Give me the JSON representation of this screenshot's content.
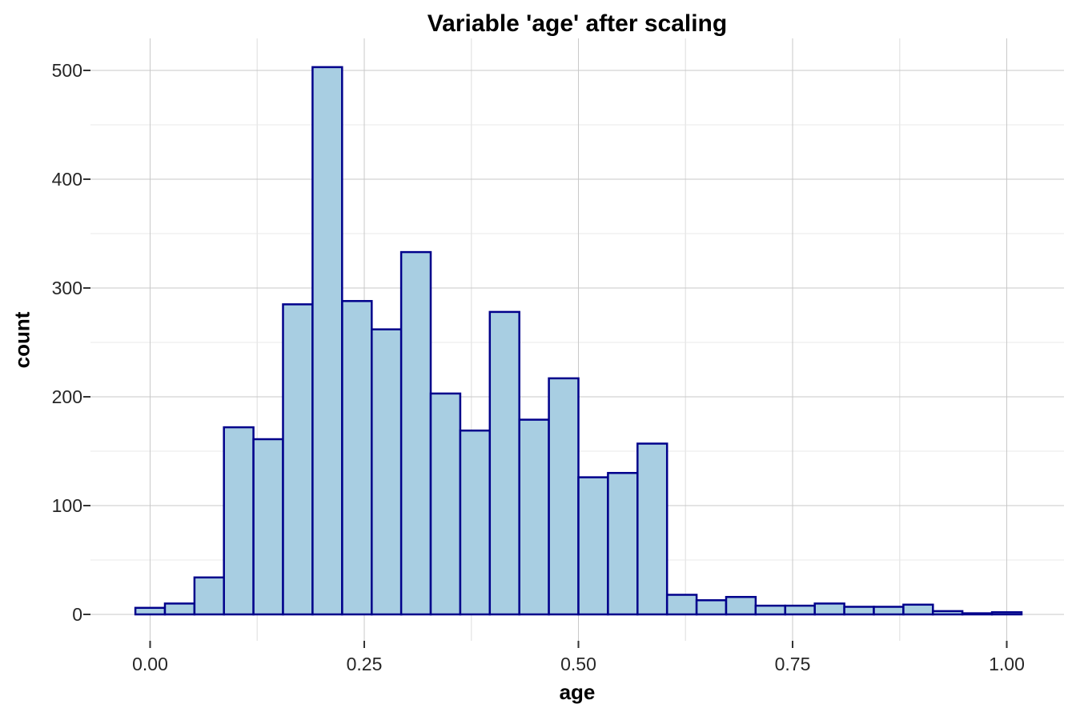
{
  "chart_data": {
    "type": "bar",
    "subtype": "histogram",
    "title": "Variable 'age' after scaling",
    "xlabel": "age",
    "ylabel": "count",
    "x_tick_labels": [
      "0.00",
      "0.25",
      "0.50",
      "0.75",
      "1.00"
    ],
    "x_tick_values": [
      0,
      0.25,
      0.5,
      0.75,
      1.0
    ],
    "y_tick_labels": [
      "0",
      "100",
      "200",
      "300",
      "400",
      "500"
    ],
    "y_tick_values": [
      0,
      100,
      200,
      300,
      400,
      500
    ],
    "xlim": [
      -0.07,
      1.07
    ],
    "ylim": [
      -25,
      529
    ],
    "grid": {
      "major": true,
      "minor": true
    },
    "legend": "none",
    "binwidth": 0.03448,
    "bin_centers": [
      0.0,
      0.0345,
      0.069,
      0.1034,
      0.1379,
      0.1724,
      0.2069,
      0.2414,
      0.2759,
      0.3103,
      0.3448,
      0.3793,
      0.4138,
      0.4483,
      0.4828,
      0.5172,
      0.5517,
      0.5862,
      0.6207,
      0.6552,
      0.6897,
      0.7241,
      0.7586,
      0.7931,
      0.8276,
      0.8621,
      0.8966,
      0.931,
      0.9655,
      1.0
    ],
    "counts": [
      6,
      10,
      34,
      172,
      161,
      285,
      503,
      288,
      262,
      333,
      203,
      169,
      278,
      179,
      217,
      126,
      130,
      157,
      18,
      13,
      16,
      8,
      8,
      10,
      7,
      7,
      9,
      3,
      1,
      2
    ],
    "colors": {
      "bar_fill": "#A8CEE2",
      "bar_stroke": "#00008B",
      "grid_major": "#C9C9C9",
      "grid_minor": "#E8E8E8",
      "tick_mark": "#333333",
      "tick_text": "#262626",
      "title_text": "#000000",
      "background": "#FFFFFF"
    }
  }
}
